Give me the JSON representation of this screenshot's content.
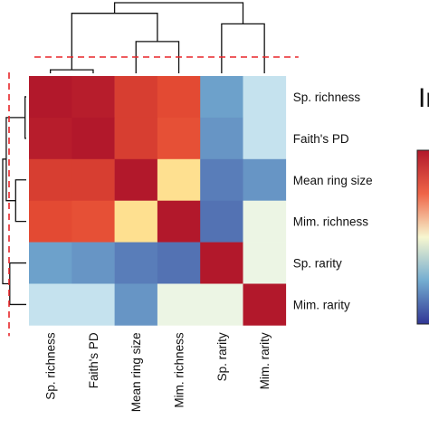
{
  "chart_data": {
    "type": "heatmap",
    "title": "",
    "row_labels": [
      "Sp. richness",
      "Faith's PD",
      "Mean ring size",
      "Mim. richness",
      "Sp. rarity",
      "Mim. rarity"
    ],
    "col_labels": [
      "Sp. richness",
      "Faith's PD",
      "Mean ring size",
      "Mim. richness",
      "Sp. rarity",
      "Mim. rarity"
    ],
    "values": [
      [
        1.0,
        0.98,
        0.85,
        0.8,
        -0.55,
        -0.2
      ],
      [
        0.98,
        1.0,
        0.85,
        0.75,
        -0.6,
        -0.2
      ],
      [
        0.85,
        0.85,
        1.0,
        0.25,
        -0.7,
        -0.6
      ],
      [
        0.8,
        0.75,
        0.25,
        1.0,
        -0.75,
        -0.05
      ],
      [
        -0.55,
        -0.6,
        -0.7,
        -0.75,
        1.0,
        -0.05
      ],
      [
        -0.2,
        -0.2,
        -0.6,
        -0.05,
        -0.05,
        1.0
      ]
    ],
    "color_scale": {
      "min": -1,
      "max": 1,
      "low": "#313695",
      "mid": "#f7f7d0",
      "high": "#b2182b"
    },
    "dendrogram_col": {
      "merges": [
        [
          0,
          1,
          0.05
        ],
        [
          2,
          3,
          0.45
        ],
        [
          4,
          5,
          0.7
        ],
        [
          6,
          7,
          0.85
        ],
        [
          8,
          9,
          1.0
        ]
      ]
    },
    "dendrogram_row": {
      "merges": [
        [
          0,
          1,
          0.05
        ],
        [
          2,
          3,
          0.45
        ],
        [
          4,
          5,
          0.7
        ],
        [
          6,
          7,
          0.85
        ],
        [
          8,
          9,
          1.0
        ]
      ]
    },
    "cut_line_color": "#e8262a",
    "legend": {
      "title": "",
      "title_partial": "Ir",
      "placement": "right"
    }
  }
}
